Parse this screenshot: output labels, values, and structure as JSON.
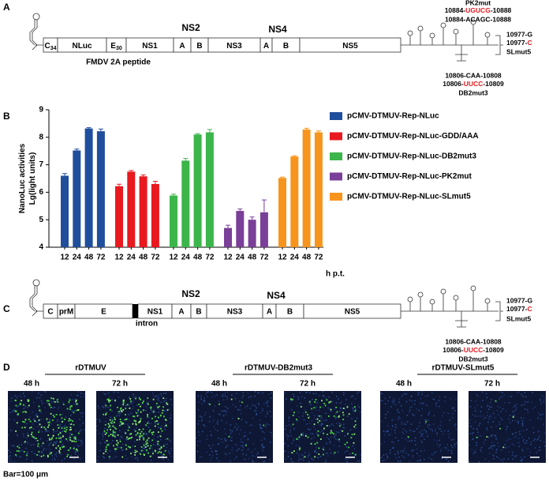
{
  "panel_labels": [
    "A",
    "B",
    "C",
    "D"
  ],
  "panel_a": {
    "segments": [
      {
        "text": "C",
        "sub": "34"
      },
      {
        "text": "NLuc"
      },
      {
        "text": "E",
        "sub": "30"
      },
      {
        "text": "NS1"
      },
      {
        "text": "A"
      },
      {
        "text": "B"
      },
      {
        "text": "NS3"
      },
      {
        "text": "A"
      },
      {
        "text": "B"
      },
      {
        "text": "NS5"
      }
    ],
    "upper_labels": [
      "NS2",
      "NS4"
    ],
    "peptide_label": "FMDV 2A peptide",
    "pk2mut": {
      "title": "PK2mut",
      "mutant": {
        "prefix": "10884-",
        "mut": "UGUCG",
        "suffix": "-10888"
      },
      "wild": "10884-ACAGC-10888"
    },
    "slmut5": {
      "wild": "10977-G",
      "mutant": {
        "prefix": "10977-",
        "mut": "C"
      },
      "title": "SLmut5"
    },
    "db2mut3": {
      "wild": "10806-CAA-10808",
      "mutant": {
        "prefix": "10806-",
        "mut": "UUCC",
        "suffix": "-10809"
      },
      "title": "DB2mut3"
    }
  },
  "chart_data": {
    "type": "bar",
    "ylabel": [
      "NanoLuc activities",
      "Lg(light units)"
    ],
    "xlabel": "h p.t.",
    "categories": [
      "12",
      "24",
      "48",
      "72"
    ],
    "series": [
      {
        "name": "pCMV-DTMUV-Rep-NLuc",
        "color": "#1f4e9c",
        "values": [
          6.6,
          7.52,
          8.32,
          8.22
        ],
        "errors": [
          0.08,
          0.05,
          0.03,
          0.08
        ]
      },
      {
        "name": "pCMV-DTMUV-Rep-NLuc-GDD/AAA",
        "color": "#e8191f",
        "values": [
          6.22,
          6.75,
          6.58,
          6.3
        ],
        "errors": [
          0.07,
          0.04,
          0.05,
          0.1
        ]
      },
      {
        "name": "pCMV-DTMUV-Rep-NLuc-DB2mut3",
        "color": "#3cb54a",
        "values": [
          5.88,
          7.15,
          8.1,
          8.18
        ],
        "errors": [
          0.05,
          0.08,
          0.03,
          0.1
        ]
      },
      {
        "name": "pCMV-DTMUV-Rep-NLuc-PK2mut",
        "color": "#7a3f98",
        "values": [
          4.7,
          5.32,
          5.0,
          5.27
        ],
        "errors": [
          0.1,
          0.07,
          0.1,
          0.45
        ]
      },
      {
        "name": "pCMV-DTMUV-Rep-NLuc-SLmut5",
        "color": "#f7941d",
        "values": [
          6.52,
          7.3,
          8.28,
          8.18
        ],
        "errors": [
          0.03,
          0.03,
          0.05,
          0.05
        ]
      }
    ],
    "ylim": [
      4,
      9
    ],
    "yticks": [
      4,
      5,
      6,
      7,
      8,
      9
    ],
    "legend": "right"
  },
  "panel_c": {
    "segments": [
      "C",
      "prM",
      "E",
      "NS1",
      "A",
      "B",
      "NS3",
      "A",
      "B",
      "NS5"
    ],
    "upper_labels": [
      "NS2",
      "NS4"
    ],
    "intron_label": "intron",
    "slmut5": {
      "wild": "10977-G",
      "mutant": {
        "prefix": "10977-",
        "mut": "C"
      },
      "title": "SLmut5"
    },
    "db2mut3": {
      "wild": "10806-CAA-10808",
      "mutant": {
        "prefix": "10806-",
        "mut": "UUCC",
        "suffix": "-10809"
      },
      "title": "DB2mut3"
    }
  },
  "panel_d": {
    "groups": [
      {
        "name": "rDTMUV",
        "times": [
          "48 h",
          "72 h"
        ]
      },
      {
        "name": "rDTMUV-DB2mut3",
        "times": [
          "48 h",
          "72 h"
        ]
      },
      {
        "name": "rDTMUV-SLmut5",
        "times": [
          "48 h",
          "72 h"
        ]
      }
    ],
    "scale_label": "Bar=100 μm"
  }
}
